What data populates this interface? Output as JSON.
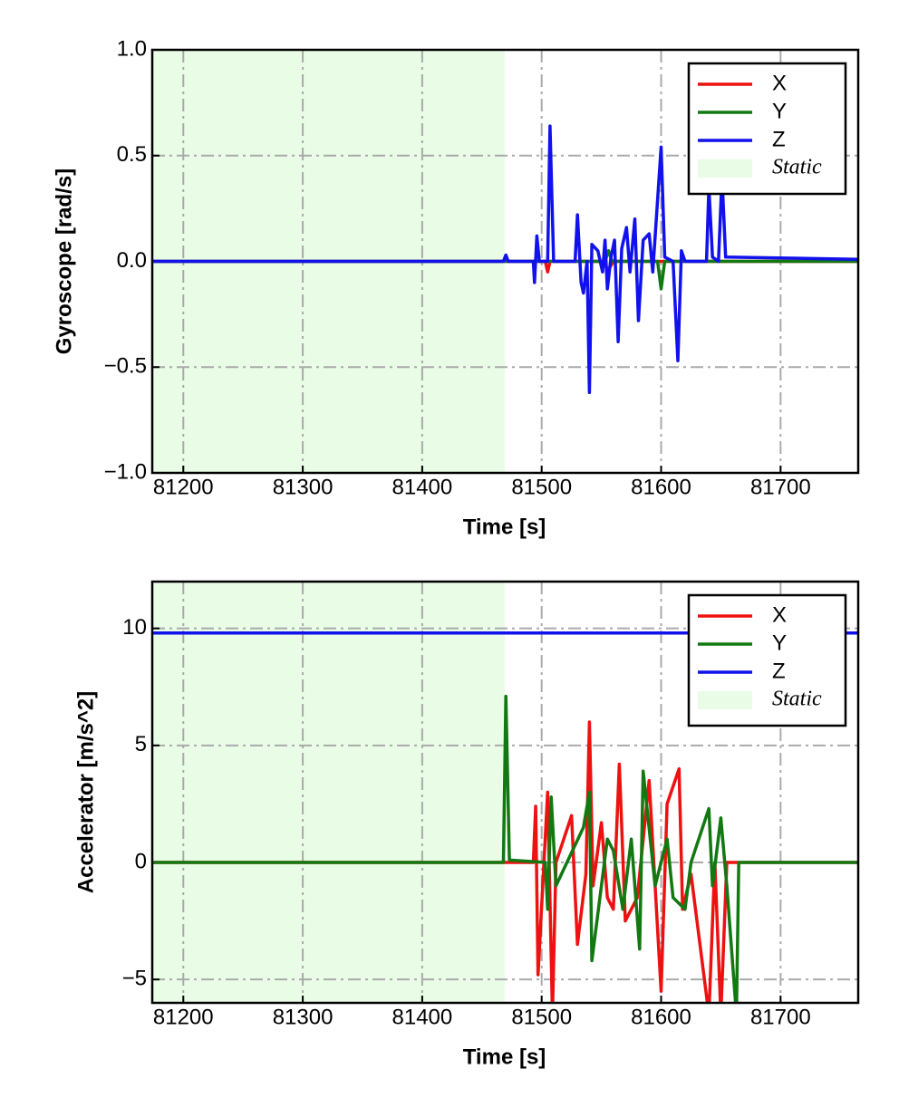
{
  "chart_data": [
    {
      "type": "line",
      "xlabel": "Time [s]",
      "ylabel": "Gyroscope [rad/s]",
      "xlim": [
        81174,
        81765
      ],
      "ylim": [
        -1,
        1
      ],
      "xticks": [
        81200,
        81300,
        81400,
        81500,
        81600,
        81700
      ],
      "yticks": [
        {
          "value": -1,
          "label": "−1.0"
        },
        {
          "value": -0.5,
          "label": "−0.5"
        },
        {
          "value": 0,
          "label": "0.0"
        },
        {
          "value": 0.5,
          "label": "0.5"
        },
        {
          "value": 1,
          "label": "1.0"
        }
      ],
      "grid": true,
      "legend": "upper right",
      "span": {
        "label": "Static",
        "x": [
          81174,
          81469
        ],
        "color": "#e8fce6"
      },
      "series": [
        {
          "name": "X",
          "color": "#ee1111",
          "x": [
            81174,
            81503,
            81505,
            81507,
            81550,
            81556,
            81560,
            81765
          ],
          "values": [
            0,
            0,
            -0.05,
            0,
            0,
            -0.04,
            0,
            0
          ]
        },
        {
          "name": "Y",
          "color": "#127812",
          "x": [
            81174,
            81553,
            81556,
            81559,
            81597,
            81600,
            81603,
            81765
          ],
          "values": [
            0,
            0,
            0.05,
            0,
            0,
            -0.13,
            0,
            0
          ]
        },
        {
          "name": "Z",
          "color": "#1111ee",
          "x": [
            81174,
            81468,
            81470,
            81472,
            81493,
            81494,
            81496,
            81498,
            81505,
            81507,
            81510,
            81528,
            81530,
            81533,
            81535,
            81538,
            81540,
            81542,
            81547,
            81551,
            81553,
            81555,
            81558,
            81561,
            81564,
            81567,
            81571,
            81574,
            81578,
            81581,
            81585,
            81590,
            81593,
            81600,
            81603,
            81610,
            81614,
            81617,
            81620,
            81638,
            81640,
            81643,
            81648,
            81651,
            81654,
            81765
          ],
          "values": [
            0,
            0,
            0.03,
            0,
            0,
            -0.1,
            0.12,
            0,
            0,
            0.64,
            0,
            0,
            0.22,
            -0.1,
            -0.15,
            0,
            -0.62,
            0.08,
            0.05,
            -0.05,
            0.1,
            -0.13,
            0.02,
            0.1,
            -0.38,
            0.06,
            0.16,
            -0.05,
            0.2,
            -0.28,
            0.1,
            0.13,
            -0.05,
            0.54,
            0.02,
            0,
            -0.47,
            0.05,
            0,
            0,
            0.35,
            0.02,
            0,
            0.4,
            0.02,
            0.01
          ]
        }
      ]
    },
    {
      "type": "line",
      "xlabel": "Time [s]",
      "ylabel": "Accelerator [m/s^2]",
      "xlim": [
        81174,
        81765
      ],
      "ylim": [
        -6,
        12
      ],
      "xticks": [
        81200,
        81300,
        81400,
        81500,
        81600,
        81700
      ],
      "yticks": [
        {
          "value": -5,
          "label": "−5"
        },
        0,
        5,
        10
      ],
      "grid": true,
      "legend": "upper right",
      "span": {
        "label": "Static",
        "x": [
          81174,
          81469
        ],
        "color": "#e8fce6"
      },
      "series": [
        {
          "name": "X",
          "color": "#ee1111",
          "x": [
            81174,
            81493,
            81495,
            81497,
            81505,
            81509,
            81512,
            81525,
            81530,
            81537,
            81540,
            81543,
            81550,
            81555,
            81560,
            81565,
            81570,
            81580,
            81590,
            81600,
            81605,
            81615,
            81618,
            81625,
            81640,
            81645,
            81650,
            81655,
            81660,
            81765
          ],
          "values": [
            0,
            0,
            2.4,
            -4.8,
            3,
            -6.5,
            0,
            2,
            -3.5,
            -0.5,
            6,
            -1,
            1.7,
            -1.5,
            -2,
            4.2,
            -2.5,
            -1.5,
            3.5,
            -5.5,
            2.5,
            4,
            -2,
            -0.5,
            -6.5,
            0,
            -6.5,
            0,
            0,
            0
          ]
        },
        {
          "name": "Y",
          "color": "#127812",
          "x": [
            81174,
            81468,
            81470,
            81473,
            81503,
            81505,
            81508,
            81512,
            81535,
            81540,
            81542,
            81555,
            81560,
            81568,
            81575,
            81582,
            81585,
            81595,
            81605,
            81610,
            81620,
            81625,
            81640,
            81643,
            81650,
            81655,
            81663,
            81665,
            81765
          ],
          "values": [
            0,
            0,
            7.1,
            0.1,
            0,
            -2,
            2.8,
            -1,
            1.5,
            3,
            -4.2,
            1,
            0.5,
            -2,
            1,
            -3.7,
            3.9,
            -1,
            1,
            -1.5,
            -2,
            0,
            2.3,
            -1,
            1.9,
            -1,
            -6.5,
            0,
            0
          ]
        },
        {
          "name": "Z",
          "color": "#1111ee",
          "x": [
            81174,
            81765
          ],
          "values": [
            9.8,
            9.8
          ]
        }
      ]
    }
  ]
}
